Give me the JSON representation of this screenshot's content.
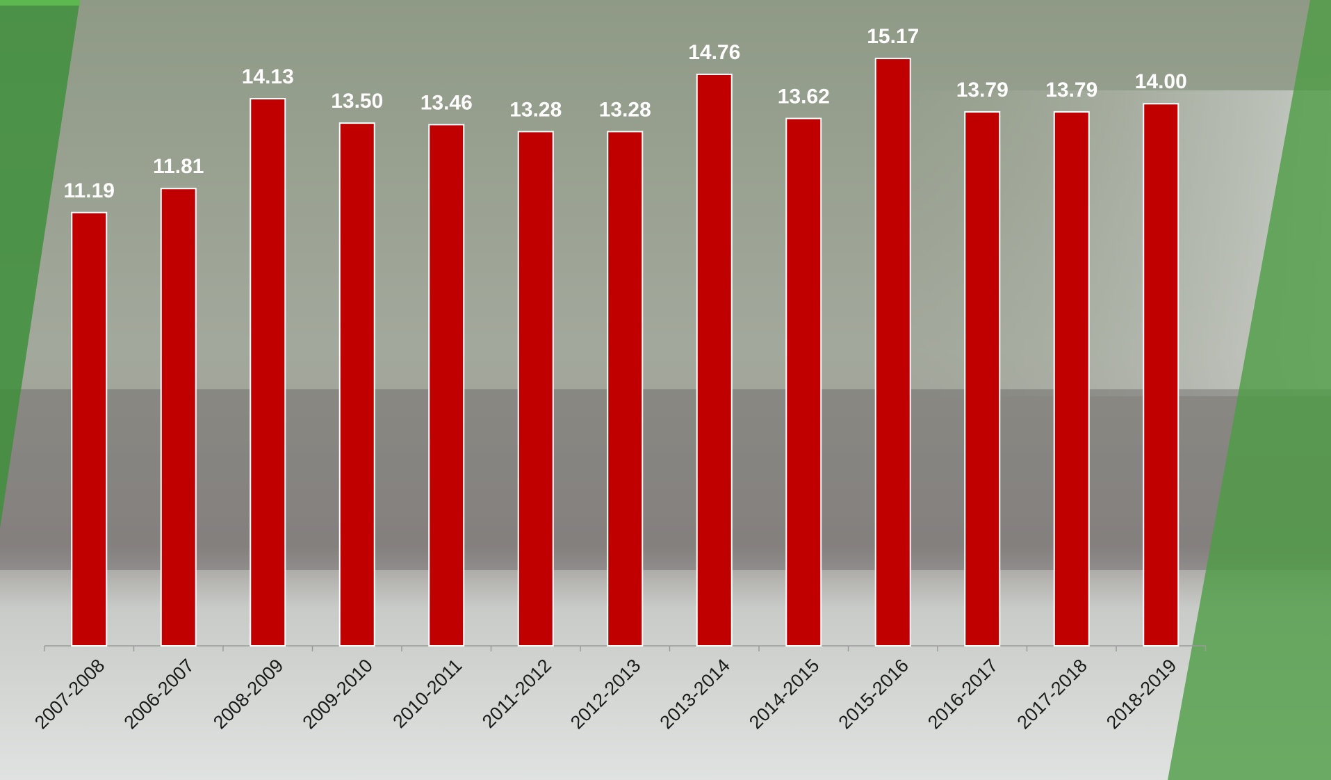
{
  "chart_data": {
    "type": "bar",
    "categories": [
      "2007-2008",
      "2006-2007",
      "2008-2009",
      "2009-2010",
      "2010-2011",
      "2011-2012",
      "2012-2013",
      "2013-2014",
      "2014-2015",
      "2015-2016",
      "2016-2017",
      "2017-2018",
      "2018-2019"
    ],
    "values": [
      11.19,
      11.81,
      14.13,
      13.5,
      13.46,
      13.28,
      13.28,
      14.76,
      13.62,
      15.17,
      13.79,
      13.79,
      14.0
    ],
    "value_labels": [
      "11.19",
      "11.81",
      "14.13",
      "13.50",
      "13.46",
      "13.28",
      "13.28",
      "14.76",
      "13.62",
      "15.17",
      "13.79",
      "13.79",
      "14.00"
    ],
    "color": "#c00000",
    "ylim": [
      0,
      16.5
    ]
  }
}
